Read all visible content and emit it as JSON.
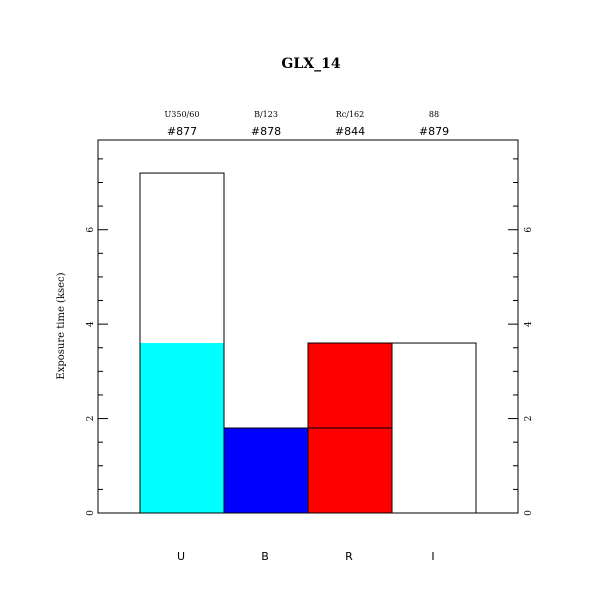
{
  "chart_data": {
    "type": "bar",
    "title": "GLX_14",
    "ylabel": "Exposure time (ksec)",
    "ylim": [
      0,
      7.9
    ],
    "yticks": [
      0,
      2,
      4,
      6
    ],
    "categories": [
      "U",
      "B",
      "R",
      "I"
    ],
    "filters": [
      "U350/60",
      "B/123",
      "Rc/162",
      "88"
    ],
    "ids": [
      "#877",
      "#878",
      "#844",
      "#879"
    ],
    "totals": [
      7.2,
      1.8,
      3.6,
      3.6
    ],
    "filled": [
      3.6,
      1.8,
      3.6,
      0
    ],
    "fill_split": [
      null,
      null,
      1.8,
      null
    ],
    "colors": [
      "#00ffff",
      "#0000ff",
      "#ff0000",
      "#ffffff"
    ]
  }
}
